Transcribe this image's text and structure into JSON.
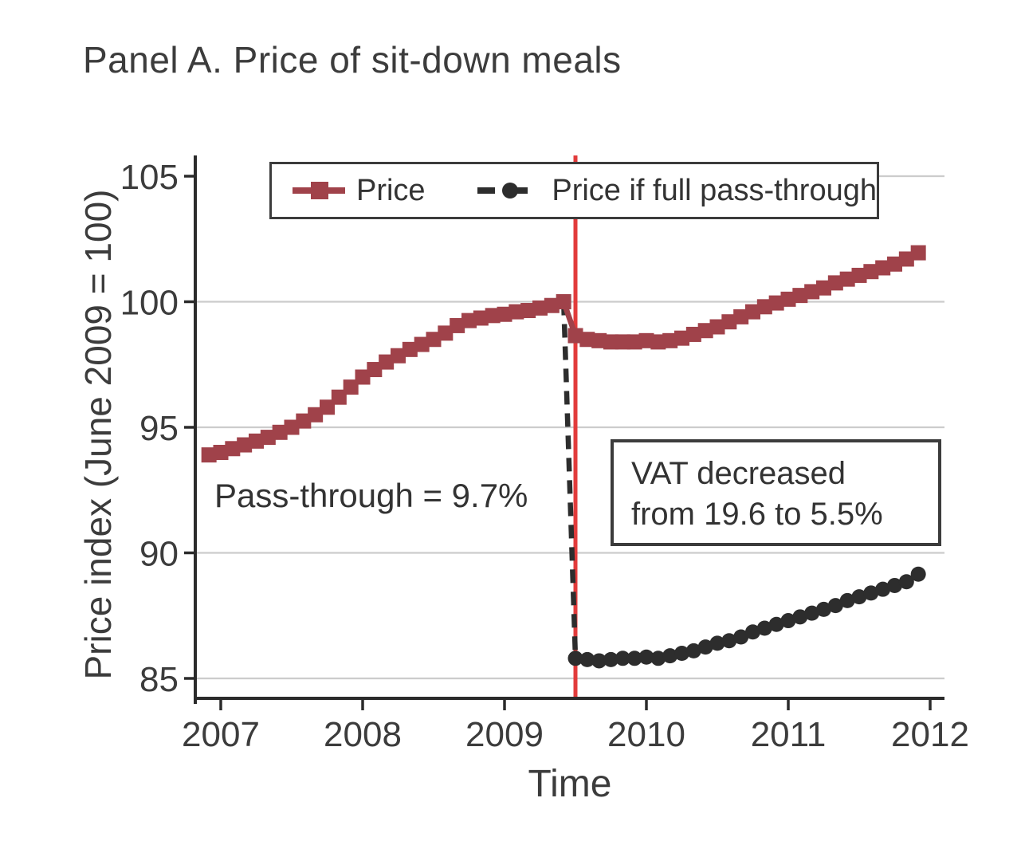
{
  "title": "Panel A. Price of sit-down meals",
  "legend": {
    "price_label": "Price",
    "passthrough_label": "Price if full pass-through"
  },
  "annotations": {
    "pass_through": "Pass-through = 9.7%",
    "vat_line1": "VAT decreased",
    "vat_line2": "from 19.6 to 5.5%"
  },
  "colors": {
    "price_series": "#a0424a",
    "counterfactual_series": "#2d2d2d",
    "reform_vline": "#e23b3b",
    "grid": "#cccccc",
    "axis": "#2b2b2b",
    "text": "#3c3c3c"
  },
  "chart_data": {
    "type": "line",
    "title": "Panel A. Price of sit-down meals",
    "xlabel": "Time",
    "ylabel": "Price index (June 2009 = 100)",
    "x_ticks": [
      2007,
      2008,
      2009,
      2010,
      2011,
      2012
    ],
    "y_ticks": [
      85,
      90,
      95,
      100,
      105
    ],
    "xlim": [
      2006.82,
      2012.1
    ],
    "ylim": [
      84.2,
      105.8
    ],
    "grid": "horizontal",
    "legend_position": "top-inside",
    "vline_x": 2009.5,
    "frequency": "monthly",
    "series": [
      {
        "name": "Price",
        "marker": "square",
        "line_style": "solid",
        "color": "#a0424a",
        "start_month": "2006-12",
        "values": [
          93.9,
          94.0,
          94.15,
          94.3,
          94.45,
          94.6,
          94.8,
          95.0,
          95.25,
          95.5,
          95.8,
          96.2,
          96.6,
          97.0,
          97.3,
          97.6,
          97.85,
          98.1,
          98.3,
          98.5,
          98.75,
          99.05,
          99.25,
          99.35,
          99.45,
          99.5,
          99.6,
          99.65,
          99.75,
          99.85,
          100.0,
          98.65,
          98.5,
          98.45,
          98.4,
          98.4,
          98.4,
          98.45,
          98.4,
          98.45,
          98.55,
          98.7,
          98.85,
          99.0,
          99.2,
          99.4,
          99.6,
          99.8,
          99.95,
          100.1,
          100.25,
          100.4,
          100.55,
          100.75,
          100.9,
          101.05,
          101.2,
          101.35,
          101.5,
          101.7,
          101.95
        ]
      },
      {
        "name": "Price if full pass-through",
        "marker": "circle",
        "line_style": "dashed",
        "color": "#2d2d2d",
        "start_month": "2009-06",
        "values": [
          100.0,
          85.8,
          85.75,
          85.7,
          85.75,
          85.8,
          85.8,
          85.85,
          85.8,
          85.9,
          86.0,
          86.1,
          86.25,
          86.4,
          86.5,
          86.65,
          86.85,
          87.0,
          87.15,
          87.3,
          87.45,
          87.6,
          87.75,
          87.9,
          88.1,
          88.25,
          88.4,
          88.55,
          88.7,
          88.85,
          89.15
        ]
      }
    ]
  }
}
